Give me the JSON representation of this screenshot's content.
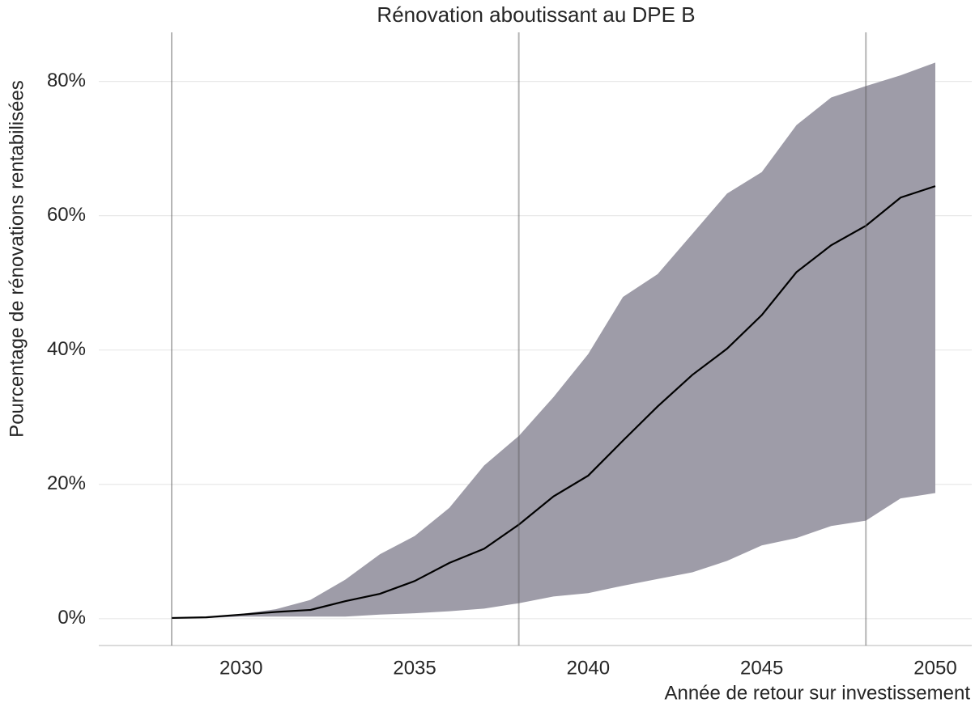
{
  "chart_data": {
    "type": "line",
    "title": "Rénovation aboutissant au DPE B",
    "x_label": "Année de retour sur investissement",
    "y_label": "Pourcentage de rénovations rentabilisées",
    "x": [
      2028,
      2029,
      2030,
      2031,
      2032,
      2033,
      2034,
      2035,
      2036,
      2037,
      2038,
      2039,
      2040,
      2041,
      2042,
      2043,
      2044,
      2045,
      2046,
      2047,
      2048,
      2049,
      2050
    ],
    "values": [
      0.1,
      0.2,
      0.6,
      1.0,
      1.3,
      2.6,
      3.7,
      5.6,
      8.3,
      10.4,
      14.0,
      18.2,
      21.3,
      26.5,
      31.6,
      36.3,
      40.2,
      45.2,
      51.6,
      55.6,
      58.5,
      62.7,
      64.4
    ],
    "band_upper": [
      0.1,
      0.2,
      0.7,
      1.4,
      2.8,
      5.8,
      9.6,
      12.3,
      16.5,
      22.8,
      27.2,
      33.0,
      39.4,
      47.9,
      51.3,
      57.3,
      63.3,
      66.5,
      73.5,
      77.6,
      79.3,
      80.9,
      82.8
    ],
    "band_lower": [
      0.1,
      0.1,
      0.3,
      0.3,
      0.3,
      0.3,
      0.6,
      0.8,
      1.1,
      1.5,
      2.3,
      3.3,
      3.8,
      4.9,
      5.9,
      6.9,
      8.6,
      10.9,
      12.0,
      13.8,
      14.6,
      17.9,
      18.7
    ],
    "color": "#000000",
    "band_color": "#9e9ca8",
    "vlines": [
      2028,
      2038,
      2048
    ],
    "xlim": [
      2025.9,
      2051.05
    ],
    "xticks": [
      2030,
      2035,
      2040,
      2045,
      2050
    ],
    "ylim": [
      -4,
      87.3
    ],
    "yticks": [
      {
        "value": 0,
        "label": "0%"
      },
      {
        "value": 20,
        "label": "20%"
      },
      {
        "value": 40,
        "label": "40%"
      },
      {
        "value": 60,
        "label": "60%"
      },
      {
        "value": 80,
        "label": "80%"
      }
    ],
    "grid": true
  }
}
